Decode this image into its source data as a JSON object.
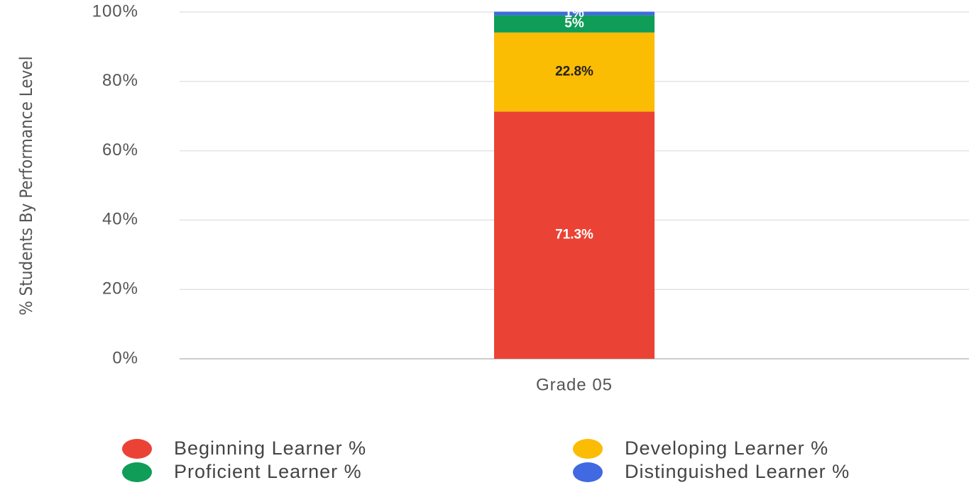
{
  "chart_data": {
    "type": "stacked_bar",
    "y_label": "% Students By Performance Level",
    "categories": [
      "Grade 05"
    ],
    "series": [
      {
        "name": "Beginning Learner %",
        "color": "#ea4335",
        "values": [
          71.3
        ],
        "value_labels": [
          "71.3%"
        ]
      },
      {
        "name": "Developing Learner %",
        "color": "#fbbc04",
        "values": [
          22.8
        ],
        "value_labels": [
          "22.8%"
        ]
      },
      {
        "name": "Proficient Learner %",
        "color": "#0f9d58",
        "values": [
          5
        ],
        "value_labels": [
          "5%"
        ]
      },
      {
        "name": "Distinguished Learner %",
        "color": "#4169e1",
        "values": [
          1
        ],
        "value_labels": [
          "1%"
        ]
      }
    ],
    "ylim": [
      0,
      100
    ],
    "yticks": [
      {
        "value": 0,
        "label": "0%"
      },
      {
        "value": 20,
        "label": "20%"
      },
      {
        "value": 40,
        "label": "40%"
      },
      {
        "value": 60,
        "label": "60%"
      },
      {
        "value": 80,
        "label": "80%"
      },
      {
        "value": 100,
        "label": "100%"
      }
    ],
    "grid": true
  }
}
